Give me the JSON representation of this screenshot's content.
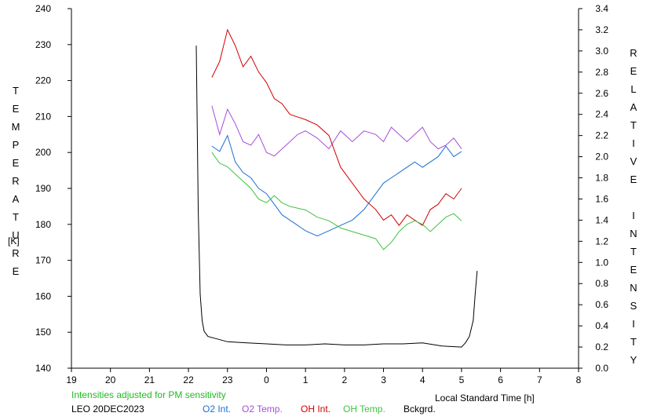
{
  "left_axis_title": "TEMPERATURE",
  "left_axis_unit": "[K]",
  "right_axis_title": "RELATIVE INTENSITY",
  "x_axis_title": "Local Standard Time [h]",
  "note": "Intensities adjusted for PM sensitivity",
  "station": "LEO 20DEC2023",
  "legend": [
    {
      "label": "O2 Int.",
      "color": "#1a6fd6"
    },
    {
      "label": "O2 Temp.",
      "color": "#a64fd6"
    },
    {
      "label": "OH Int.",
      "color": "#d40000"
    },
    {
      "label": "OH Temp.",
      "color": "#3fc23f"
    },
    {
      "label": "Bckgrd.",
      "color": "#000000"
    }
  ],
  "colors": {
    "note": "#22bb22",
    "axis": "#000000"
  },
  "chart_data": {
    "type": "line",
    "x_ticks": [
      "19",
      "20",
      "21",
      "22",
      "23",
      "0",
      "1",
      "2",
      "3",
      "4",
      "5",
      "6",
      "7",
      "8"
    ],
    "x_range": [
      19,
      32
    ],
    "y_left": {
      "range": [
        140,
        240
      ],
      "ticks": [
        140,
        150,
        160,
        170,
        180,
        190,
        200,
        210,
        220,
        230,
        240
      ],
      "label": "TEMPERATURE [K]"
    },
    "y_right": {
      "range": [
        0.0,
        3.4
      ],
      "ticks": [
        "0.0",
        "0.2",
        "0.4",
        "0.6",
        "0.8",
        "1.0",
        "1.2",
        "1.4",
        "1.6",
        "1.8",
        "2.0",
        "2.2",
        "2.4",
        "2.6",
        "2.8",
        "3.0",
        "3.2",
        "3.4"
      ],
      "label": "RELATIVE INTENSITY"
    },
    "series": [
      {
        "name": "O2 Int.",
        "axis": "right",
        "color": "#1a6fd6",
        "x": [
          22.6,
          22.8,
          23.0,
          23.2,
          23.4,
          23.6,
          23.8,
          24.0,
          24.2,
          24.4,
          24.6,
          24.8,
          25.0,
          25.3,
          25.6,
          25.9,
          26.2,
          26.5,
          26.8,
          27.0,
          27.2,
          27.4,
          27.6,
          27.8,
          28.0,
          28.2,
          28.4,
          28.6,
          28.8,
          29.0
        ],
        "y": [
          2.1,
          2.05,
          2.2,
          1.95,
          1.85,
          1.8,
          1.7,
          1.65,
          1.55,
          1.45,
          1.4,
          1.35,
          1.3,
          1.25,
          1.3,
          1.35,
          1.4,
          1.5,
          1.65,
          1.75,
          1.8,
          1.85,
          1.9,
          1.95,
          1.9,
          1.95,
          2.0,
          2.1,
          2.0,
          2.05
        ]
      },
      {
        "name": "O2 Temp.",
        "axis": "left",
        "color": "#a64fd6",
        "x": [
          22.6,
          22.8,
          23.0,
          23.2,
          23.4,
          23.6,
          23.8,
          24.0,
          24.2,
          24.4,
          24.6,
          24.8,
          25.0,
          25.3,
          25.6,
          25.9,
          26.2,
          26.5,
          26.8,
          27.0,
          27.2,
          27.4,
          27.6,
          27.8,
          28.0,
          28.2,
          28.4,
          28.6,
          28.8,
          29.0
        ],
        "y": [
          213,
          205,
          212,
          208,
          203,
          202,
          205,
          200,
          199,
          201,
          203,
          205,
          206,
          204,
          201,
          206,
          203,
          206,
          205,
          203,
          207,
          205,
          203,
          205,
          207,
          203,
          201,
          202,
          204,
          201
        ]
      },
      {
        "name": "OH Int.",
        "axis": "right",
        "color": "#d40000",
        "x": [
          22.6,
          22.8,
          23.0,
          23.2,
          23.4,
          23.6,
          23.8,
          24.0,
          24.2,
          24.4,
          24.6,
          25.0,
          25.3,
          25.6,
          25.9,
          26.2,
          26.5,
          26.8,
          27.0,
          27.2,
          27.4,
          27.6,
          27.8,
          28.0,
          28.2,
          28.4,
          28.6,
          28.8,
          29.0
        ],
        "y": [
          2.75,
          2.9,
          3.2,
          3.05,
          2.85,
          2.95,
          2.8,
          2.7,
          2.55,
          2.5,
          2.4,
          2.35,
          2.3,
          2.2,
          1.9,
          1.75,
          1.6,
          1.5,
          1.4,
          1.45,
          1.35,
          1.45,
          1.4,
          1.35,
          1.5,
          1.55,
          1.65,
          1.6,
          1.7
        ]
      },
      {
        "name": "OH Temp.",
        "axis": "left",
        "color": "#3fc23f",
        "x": [
          22.6,
          22.8,
          23.0,
          23.2,
          23.4,
          23.6,
          23.8,
          24.0,
          24.2,
          24.4,
          24.6,
          25.0,
          25.3,
          25.6,
          25.9,
          26.2,
          26.5,
          26.8,
          27.0,
          27.2,
          27.4,
          27.6,
          27.8,
          28.0,
          28.2,
          28.4,
          28.6,
          28.8,
          29.0
        ],
        "y": [
          200,
          197,
          196,
          194,
          192,
          190,
          187,
          186,
          188,
          186,
          185,
          184,
          182,
          181,
          179,
          178,
          177,
          176,
          173,
          175,
          178,
          180,
          181,
          180,
          178,
          180,
          182,
          183,
          181
        ]
      },
      {
        "name": "Bckgrd.",
        "axis": "right",
        "color": "#000000",
        "x": [
          22.2,
          22.25,
          22.3,
          22.35,
          22.4,
          22.5,
          22.7,
          23.0,
          23.5,
          24.0,
          24.5,
          25.0,
          25.5,
          26.0,
          26.5,
          27.0,
          27.5,
          28.0,
          28.5,
          29.0,
          29.1,
          29.2,
          29.3,
          29.35,
          29.4
        ],
        "y": [
          3.05,
          1.5,
          0.7,
          0.45,
          0.35,
          0.3,
          0.28,
          0.25,
          0.24,
          0.23,
          0.22,
          0.22,
          0.23,
          0.22,
          0.22,
          0.23,
          0.23,
          0.24,
          0.21,
          0.2,
          0.24,
          0.3,
          0.45,
          0.7,
          0.92
        ]
      }
    ]
  }
}
